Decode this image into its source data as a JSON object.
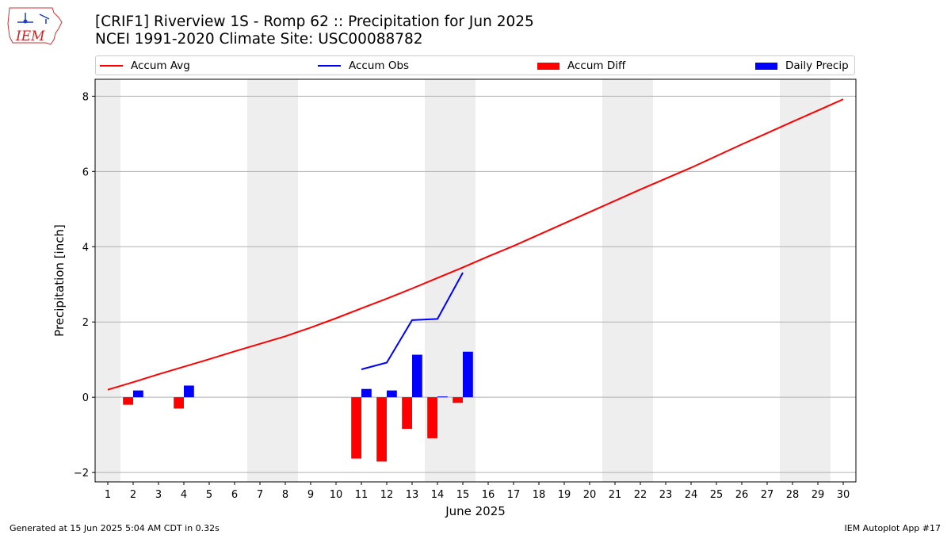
{
  "header": {
    "title_line1": "[CRIF1] Riverview 1S - Romp 62 :: Precipitation for Jun 2025",
    "title_line2": "NCEI 1991-2020 Climate Site: USC00088782",
    "logo_text": "IEM"
  },
  "footer": {
    "generated": "Generated at 15 Jun 2025 5:04 AM CDT in 0.32s",
    "app": "IEM Autoplot App #17"
  },
  "colors": {
    "accum_avg": "#ff0000",
    "accum_obs": "#0000ff",
    "accum_diff": "#ff0000",
    "daily_precip": "#0000ff",
    "weekend_shade": "#eeeeee",
    "grid": "#b0b0b0"
  },
  "chart_data": {
    "type": "bar",
    "xlabel": "June 2025",
    "ylabel": "Precipitation [inch]",
    "xlim": [
      0.5,
      30.5
    ],
    "ylim": [
      -2.25,
      8.45
    ],
    "y_ticks": [
      -2,
      0,
      2,
      4,
      6,
      8
    ],
    "x_ticks": [
      1,
      2,
      3,
      4,
      5,
      6,
      7,
      8,
      9,
      10,
      11,
      12,
      13,
      14,
      15,
      16,
      17,
      18,
      19,
      20,
      21,
      22,
      23,
      24,
      25,
      26,
      27,
      28,
      29,
      30
    ],
    "grid": "horizontal",
    "legend_position": "top",
    "legend": [
      "Accum Avg",
      "Accum Obs",
      "Accum Diff",
      "Daily Precip"
    ],
    "weekend_days": [
      1,
      7,
      8,
      14,
      15,
      21,
      22,
      28,
      29
    ],
    "series": [
      {
        "name": "Accum Avg",
        "kind": "line",
        "x": [
          1,
          2,
          3,
          4,
          5,
          6,
          7,
          8,
          9,
          10,
          11,
          12,
          13,
          14,
          15,
          16,
          17,
          18,
          19,
          20,
          21,
          22,
          23,
          24,
          25,
          26,
          27,
          28,
          29,
          30
        ],
        "values": [
          0.2,
          0.4,
          0.61,
          0.81,
          1.01,
          1.22,
          1.42,
          1.62,
          1.85,
          2.1,
          2.36,
          2.62,
          2.89,
          3.17,
          3.45,
          3.74,
          4.02,
          4.32,
          4.62,
          4.92,
          5.22,
          5.52,
          5.81,
          6.1,
          6.41,
          6.72,
          7.02,
          7.32,
          7.62,
          7.92
        ]
      },
      {
        "name": "Accum Obs",
        "kind": "line",
        "x": [
          11,
          12,
          13,
          14,
          15
        ],
        "values": [
          0.74,
          0.92,
          2.05,
          2.08,
          3.31
        ]
      },
      {
        "name": "Accum Diff",
        "kind": "bar",
        "x": [
          2,
          4,
          11,
          12,
          13,
          14,
          15
        ],
        "values": [
          -0.2,
          -0.3,
          -1.63,
          -1.71,
          -0.84,
          -1.09,
          -0.15
        ]
      },
      {
        "name": "Daily Precip",
        "kind": "bar",
        "x": [
          2,
          4,
          11,
          12,
          13,
          14,
          15
        ],
        "values": [
          0.18,
          0.31,
          0.22,
          0.18,
          1.13,
          0.02,
          1.21
        ]
      }
    ]
  }
}
